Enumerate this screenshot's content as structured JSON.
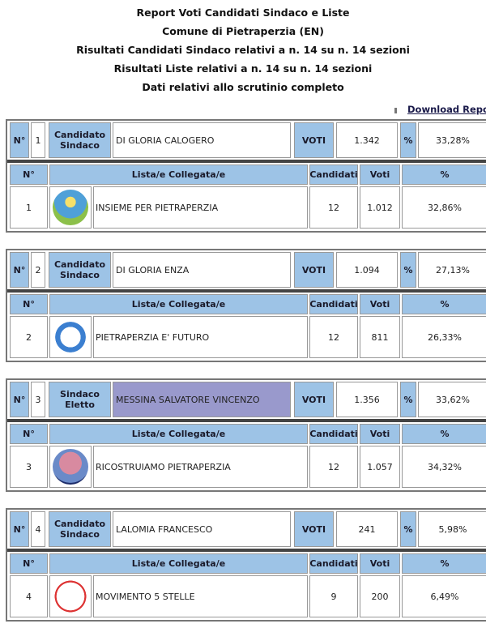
{
  "header": {
    "lines": [
      "Report Voti Candidati Sindaco e Liste",
      "Comune di Pietraperzia (EN)",
      "Risultati Candidati Sindaco relativi a n. 14 su n. 14 sezioni",
      "Risultati Liste relativi a n. 14 su n. 14 sezioni",
      "Dati relativi allo scrutinio completo"
    ]
  },
  "download": {
    "label": "Download Report",
    "icon": "download-icon"
  },
  "labels": {
    "n": "N°",
    "voti_upper": "VOTI",
    "pct": "%",
    "lista": "Lista/e Collegata/e",
    "candidati": "Candidati",
    "voti": "Voti"
  },
  "colors": {
    "header": "#9dc3e6",
    "eletto": "#9999cc"
  },
  "candidates": [
    {
      "num": "1",
      "role": [
        "Candidato",
        "Sindaco"
      ],
      "name": "DI GLORIA CALOGERO",
      "votes": "1.342",
      "pct": "33,28%",
      "elected": false,
      "list": {
        "num": "1",
        "name": "INSIEME PER PIETRAPERZIA",
        "logo": "insieme-per-pietraperzia-logo",
        "candidati": "12",
        "voti": "1.012",
        "pct": "32,86%"
      }
    },
    {
      "num": "2",
      "role": [
        "Candidato",
        "Sindaco"
      ],
      "name": "DI GLORIA ENZA",
      "votes": "1.094",
      "pct": "27,13%",
      "elected": false,
      "list": {
        "num": "2",
        "name": "PIETRAPERZIA E' FUTURO",
        "logo": "pietraperzia-e-futuro-logo",
        "candidati": "12",
        "voti": "811",
        "pct": "26,33%"
      }
    },
    {
      "num": "3",
      "role": [
        "Sindaco",
        "Eletto"
      ],
      "name": "MESSINA SALVATORE VINCENZO",
      "votes": "1.356",
      "pct": "33,62%",
      "elected": true,
      "list": {
        "num": "3",
        "name": "RICOSTRUIAMO PIETRAPERZIA",
        "logo": "ricostruiamo-pietraperzia-logo",
        "candidati": "12",
        "voti": "1.057",
        "pct": "34,32%"
      }
    },
    {
      "num": "4",
      "role": [
        "Candidato",
        "Sindaco"
      ],
      "name": "LALOMIA FRANCESCO",
      "votes": "241",
      "pct": "5,98%",
      "elected": false,
      "list": {
        "num": "4",
        "name": "MOVIMENTO 5 STELLE",
        "logo": "movimento-5-stelle-logo",
        "candidati": "9",
        "voti": "200",
        "pct": "6,49%"
      }
    }
  ]
}
